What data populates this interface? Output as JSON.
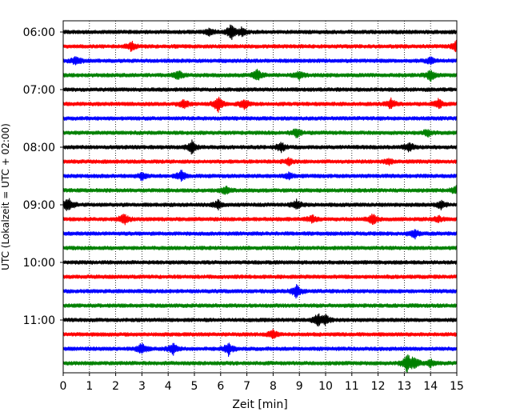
{
  "chart_data": {
    "type": "line",
    "xlabel": "Zeit  [min]",
    "ylabel": "UTC (Lokalzeit = UTC + 02:00)",
    "xlim": [
      0,
      15
    ],
    "x_ticks": [
      "0",
      "1",
      "2",
      "3",
      "4",
      "5",
      "6",
      "7",
      "8",
      "9",
      "10",
      "11",
      "12",
      "13",
      "14",
      "15"
    ],
    "y_tick_labels": [
      "06:00",
      "07:00",
      "08:00",
      "09:00",
      "10:00",
      "11:00"
    ],
    "y_tick_rows": [
      0,
      4,
      8,
      12,
      16,
      20
    ],
    "grid_x": true,
    "grid_style": "dotted",
    "row_colors": [
      "#000000",
      "#ff0000",
      "#0000ff",
      "#008000"
    ],
    "row_start_times": [
      "06:00",
      "06:15",
      "06:30",
      "06:45",
      "07:00",
      "07:15",
      "07:30",
      "07:45",
      "08:00",
      "08:15",
      "08:30",
      "08:45",
      "09:00",
      "09:15",
      "09:30",
      "09:45",
      "10:00",
      "10:15",
      "10:30",
      "10:45",
      "11:00",
      "11:15",
      "11:30",
      "11:45"
    ],
    "events": [
      [
        {
          "t": 6.4,
          "a": 1.0
        },
        {
          "t": 5.6,
          "a": 0.5
        },
        {
          "t": 6.8,
          "a": 0.5
        }
      ],
      [
        {
          "t": 2.6,
          "a": 0.6
        },
        {
          "t": 15.0,
          "a": 0.8
        }
      ],
      [
        {
          "t": 0.5,
          "a": 0.6
        },
        {
          "t": 14.0,
          "a": 0.4
        }
      ],
      [
        {
          "t": 4.4,
          "a": 0.6
        },
        {
          "t": 7.4,
          "a": 0.7
        },
        {
          "t": 9.0,
          "a": 0.5
        },
        {
          "t": 14.0,
          "a": 0.7
        }
      ],
      [],
      [
        {
          "t": 4.6,
          "a": 0.6
        },
        {
          "t": 5.9,
          "a": 1.1
        },
        {
          "t": 6.9,
          "a": 0.8
        },
        {
          "t": 12.5,
          "a": 0.7
        },
        {
          "t": 14.3,
          "a": 0.6
        }
      ],
      [],
      [
        {
          "t": 8.9,
          "a": 0.6
        },
        {
          "t": 13.9,
          "a": 0.5
        }
      ],
      [
        {
          "t": 4.9,
          "a": 0.8
        },
        {
          "t": 8.3,
          "a": 0.7
        },
        {
          "t": 13.2,
          "a": 0.6
        }
      ],
      [
        {
          "t": 8.6,
          "a": 0.4
        },
        {
          "t": 12.4,
          "a": 0.4
        }
      ],
      [
        {
          "t": 3.0,
          "a": 0.5
        },
        {
          "t": 4.5,
          "a": 0.7
        },
        {
          "t": 8.6,
          "a": 0.4
        }
      ],
      [
        {
          "t": 6.2,
          "a": 0.5
        },
        {
          "t": 15.0,
          "a": 0.7
        }
      ],
      [
        {
          "t": 0.2,
          "a": 1.0
        },
        {
          "t": 5.9,
          "a": 0.6
        },
        {
          "t": 8.9,
          "a": 0.6
        },
        {
          "t": 14.4,
          "a": 0.5
        }
      ],
      [
        {
          "t": 2.3,
          "a": 0.8
        },
        {
          "t": 9.5,
          "a": 0.5
        },
        {
          "t": 11.8,
          "a": 0.7
        },
        {
          "t": 14.3,
          "a": 0.4
        }
      ],
      [
        {
          "t": 13.4,
          "a": 0.6
        }
      ],
      [],
      [],
      [],
      [
        {
          "t": 8.9,
          "a": 1.0
        }
      ],
      [],
      [
        {
          "t": 9.7,
          "a": 0.8
        },
        {
          "t": 10.0,
          "a": 0.6
        }
      ],
      [
        {
          "t": 8.0,
          "a": 0.6
        }
      ],
      [
        {
          "t": 3.0,
          "a": 0.8
        },
        {
          "t": 4.2,
          "a": 0.7
        },
        {
          "t": 6.3,
          "a": 0.8
        }
      ],
      [
        {
          "t": 13.1,
          "a": 1.2
        },
        {
          "t": 13.4,
          "a": 0.9
        },
        {
          "t": 14.0,
          "a": 0.5
        }
      ]
    ]
  }
}
